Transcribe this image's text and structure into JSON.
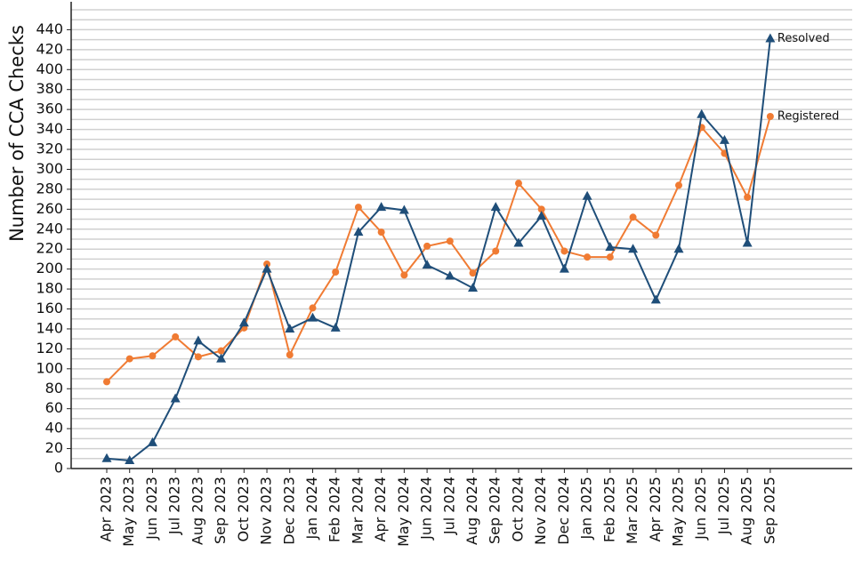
{
  "chart_data": {
    "type": "line",
    "y_label": "Number of CCA Checks",
    "categories": [
      "Apr 2023",
      "May 2023",
      "Jun 2023",
      "Jul 2023",
      "Aug 2023",
      "Sep 2023",
      "Oct 2023",
      "Nov 2023",
      "Dec 2023",
      "Jan 2024",
      "Feb 2024",
      "Mar 2024",
      "Apr 2024",
      "May 2024",
      "Jun 2024",
      "Jul 2024",
      "Aug 2024",
      "Sep 2024",
      "Oct 2024",
      "Nov 2024",
      "Dec 2024",
      "Jan 2025",
      "Feb 2025",
      "Mar 2025",
      "Apr 2025",
      "May 2025",
      "Jun 2025",
      "Jul 2025",
      "Aug 2025",
      "Sep 2025"
    ],
    "series": [
      {
        "name": "Registered",
        "color": "#f07b33",
        "marker": "circle",
        "values": [
          87,
          110,
          113,
          132,
          112,
          118,
          141,
          205,
          114,
          161,
          197,
          262,
          237,
          194,
          223,
          228,
          196,
          218,
          286,
          260,
          218,
          212,
          212,
          252,
          234,
          284,
          342,
          316,
          272,
          353
        ]
      },
      {
        "name": "Resolved",
        "color": "#1f4e79",
        "marker": "triangle",
        "values": [
          10,
          8,
          26,
          70,
          128,
          110,
          146,
          200,
          140,
          151,
          141,
          237,
          262,
          259,
          204,
          193,
          181,
          262,
          226,
          253,
          200,
          273,
          222,
          220,
          169,
          220,
          355,
          329,
          226,
          431
        ]
      }
    ],
    "ylim": [
      0,
      468
    ],
    "yticks": [
      0,
      20,
      40,
      60,
      80,
      100,
      120,
      140,
      160,
      180,
      200,
      220,
      240,
      260,
      280,
      300,
      320,
      340,
      360,
      380,
      400,
      420,
      440
    ],
    "ygrid": [
      10,
      20,
      30,
      40,
      50,
      60,
      70,
      80,
      90,
      100,
      110,
      120,
      130,
      140,
      150,
      160,
      170,
      180,
      190,
      200,
      210,
      220,
      230,
      240,
      250,
      260,
      270,
      280,
      290,
      300,
      310,
      320,
      330,
      340,
      350,
      360,
      370,
      380,
      390,
      400,
      410,
      420,
      430,
      440,
      450,
      460
    ],
    "grid": true
  }
}
